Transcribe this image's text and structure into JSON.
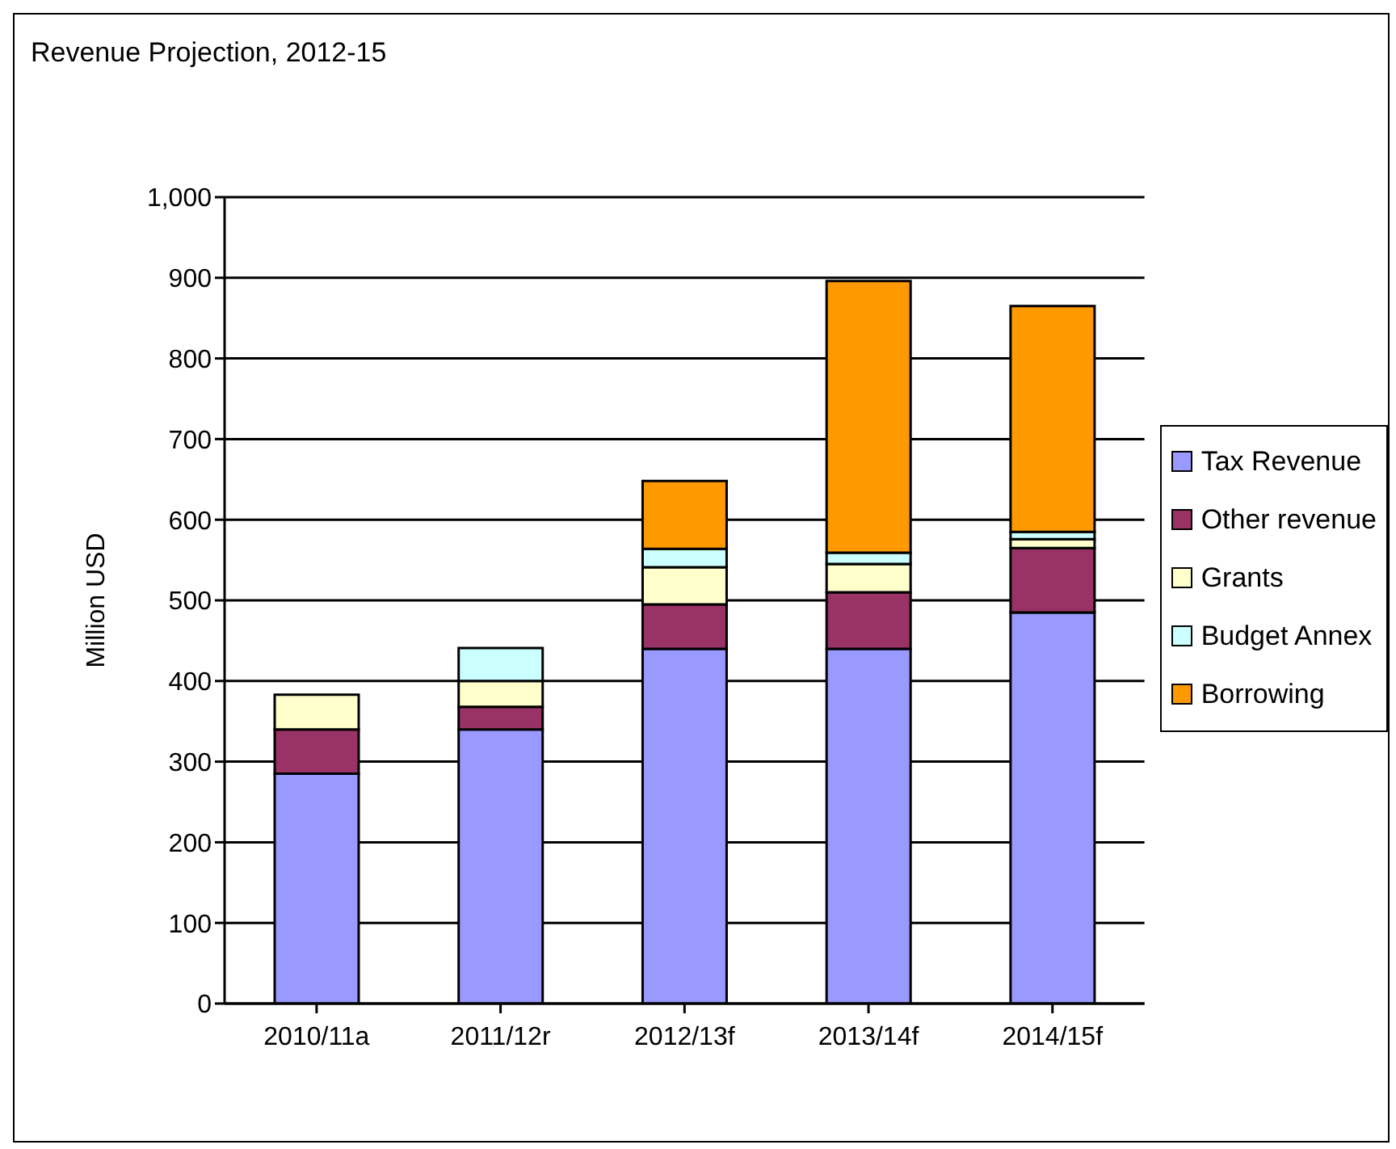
{
  "chart_data": {
    "type": "bar",
    "title": "Revenue Projection, 2012-15",
    "ylabel": "Million USD",
    "categories": [
      "2010/11a",
      "2011/12r",
      "2012/13f",
      "2013/14f",
      "2014/15f"
    ],
    "stacked": true,
    "series": [
      {
        "name": "Tax Revenue",
        "color": "#9999ff",
        "values": [
          285,
          340,
          440,
          440,
          485
        ]
      },
      {
        "name": "Other revenue",
        "color": "#993366",
        "values": [
          55,
          28,
          55,
          70,
          80
        ]
      },
      {
        "name": "Grants",
        "color": "#ffffcc",
        "values": [
          43,
          32,
          46,
          35,
          11
        ]
      },
      {
        "name": "Budget Annex",
        "color": "#ccffff",
        "values": [
          null,
          41,
          23,
          14,
          9
        ]
      },
      {
        "name": "Borrowing",
        "color": "#ff9900",
        "values": [
          null,
          null,
          84,
          337,
          280
        ]
      }
    ],
    "ylim": [
      0,
      1000
    ],
    "yticks": [
      0,
      100,
      200,
      300,
      400,
      500,
      600,
      700,
      800,
      900,
      {
        "value": 1000,
        "label": "1,000"
      }
    ],
    "grid": "y",
    "legend": "right"
  }
}
